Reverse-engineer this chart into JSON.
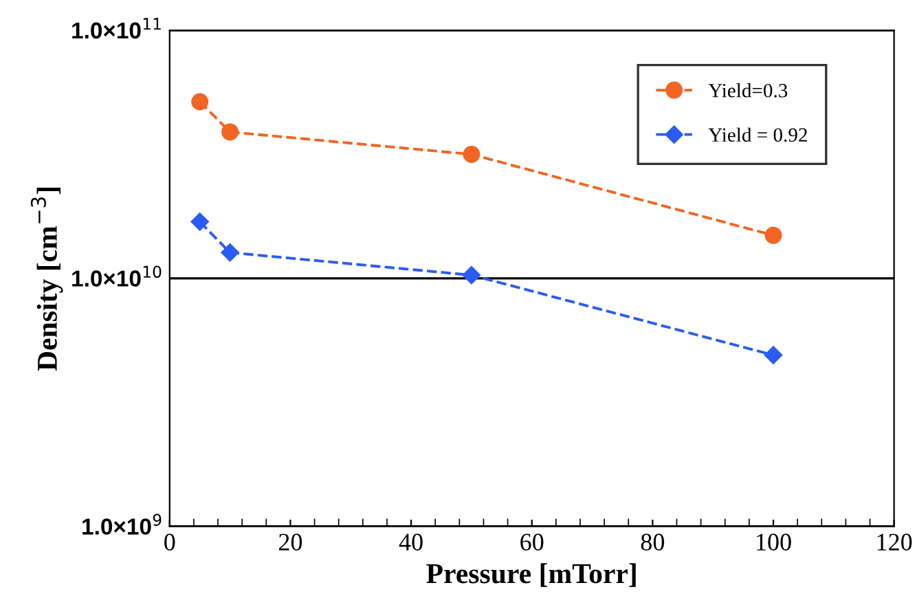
{
  "chart_data": {
    "type": "line",
    "xlabel": "Pressure [mTorr]",
    "ylabel": "Density [cm$^{−3}$]",
    "x": [
      5,
      10,
      50,
      100
    ],
    "series": [
      {
        "name": "Yield=0.3",
        "color": "#f26522",
        "marker": "circle",
        "values": [
          51500000000.0,
          38900000000.0,
          31600000000.0,
          14900000000.0
        ]
      },
      {
        "name": "Yield = 0.92",
        "color": "#2a5cf5",
        "marker": "diamond",
        "values": [
          16900000000.0,
          12700000000.0,
          10300000000.0,
          4900000000.0
        ]
      }
    ],
    "line_style": "dashed",
    "log": "y",
    "grid": "y",
    "legend": "top right",
    "xlim": [
      0,
      120
    ],
    "xticks": [
      0,
      20,
      40,
      60,
      80,
      100,
      120
    ],
    "ylim": [
      1000000000.0,
      100000000000.0
    ],
    "yticks": [
      {
        "value": 1000000000.0,
        "label": "1.0×10$^{9}$"
      },
      {
        "value": 10000000000.0,
        "label": "1.0×10$^{10}$"
      },
      {
        "value": 100000000000.0,
        "label": "1.0×10$^{11}$"
      }
    ]
  }
}
